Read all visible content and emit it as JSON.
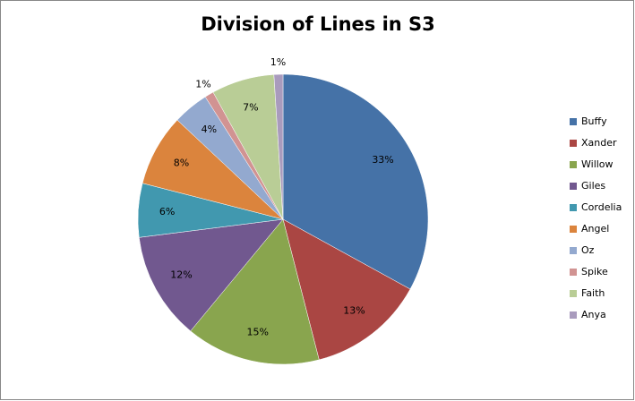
{
  "chart_data": {
    "type": "pie",
    "title": "Division of Lines in S3",
    "categories": [
      "Buffy",
      "Xander",
      "Willow",
      "Giles",
      "Cordelia",
      "Angel",
      "Oz",
      "Spike",
      "Faith",
      "Anya"
    ],
    "values": [
      33,
      13,
      15,
      12,
      6,
      8,
      4,
      1,
      7,
      1
    ],
    "value_labels": [
      "33%",
      "13%",
      "15%",
      "12%",
      "6%",
      "8%",
      "4%",
      "1%",
      "7%",
      "1%"
    ],
    "colors": [
      "#4572A7",
      "#AA4643",
      "#89A54E",
      "#71588F",
      "#4198AF",
      "#DB843D",
      "#93A9CF",
      "#D19392",
      "#B9CD96",
      "#A99BBD"
    ],
    "legend": "right"
  }
}
